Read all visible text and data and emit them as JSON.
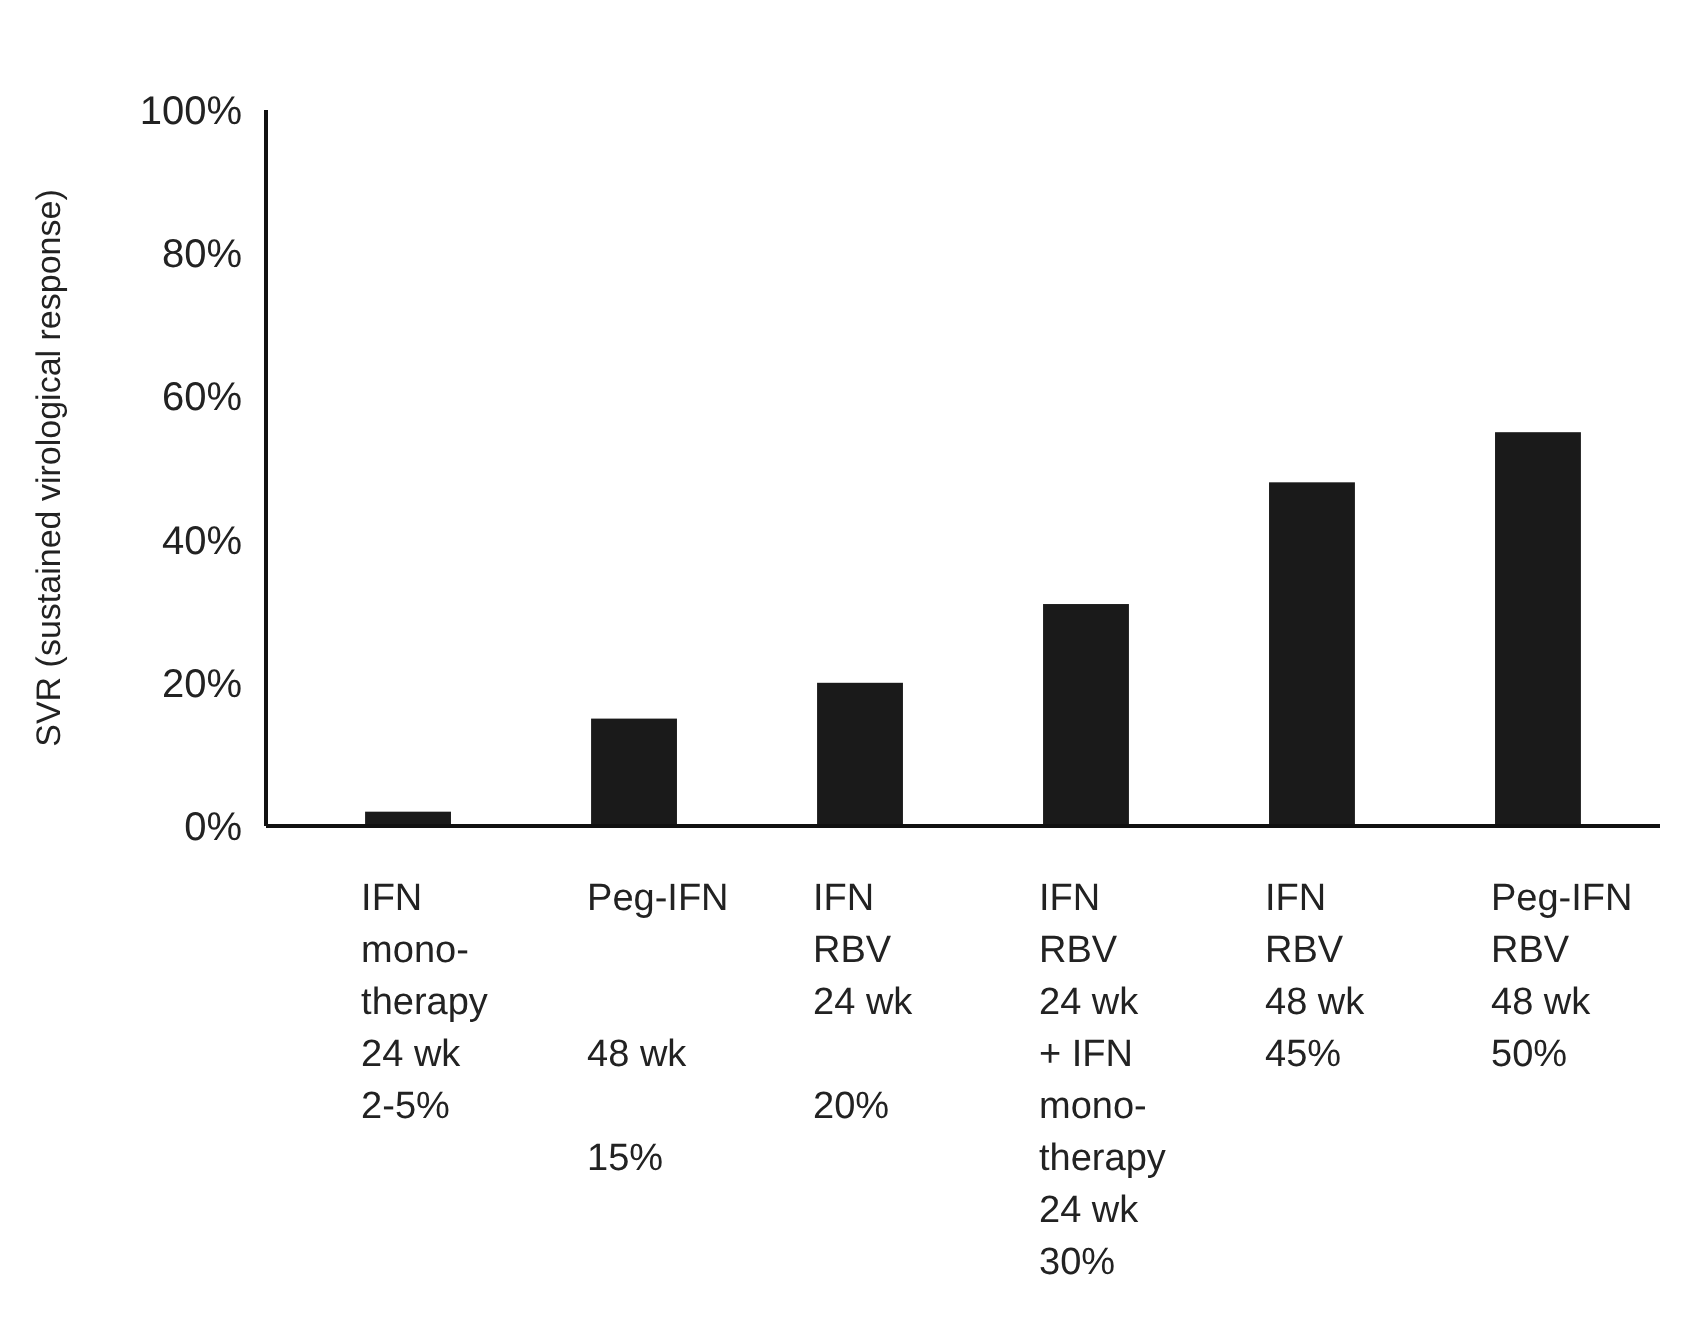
{
  "chart_data": {
    "type": "bar",
    "ylabel": "SVR (sustained virological response)",
    "categories": [
      "IFN\nmono-\ntherapy\n24 wk\n2-5%",
      "Peg-IFN\n\n\n48 wk\n\n15%",
      "IFN\nRBV\n24 wk\n\n20%",
      "IFN\nRBV\n24 wk\n+ IFN\nmono-\ntherapy\n24 wk\n30%",
      "IFN\nRBV\n48 wk\n45%",
      "Peg-IFN\nRBV\n48 wk\n50%"
    ],
    "values": [
      2,
      15,
      20,
      31,
      48,
      55
    ],
    "color": "#1a1a1a",
    "ylim": [
      0,
      100
    ],
    "yticks": [
      {
        "value": 0,
        "label": "0%"
      },
      {
        "value": 20,
        "label": "20%"
      },
      {
        "value": 40,
        "label": "40%"
      },
      {
        "value": 60,
        "label": "60%"
      },
      {
        "value": 80,
        "label": "80%"
      },
      {
        "value": 100,
        "label": "100%"
      }
    ],
    "grid": false
  }
}
